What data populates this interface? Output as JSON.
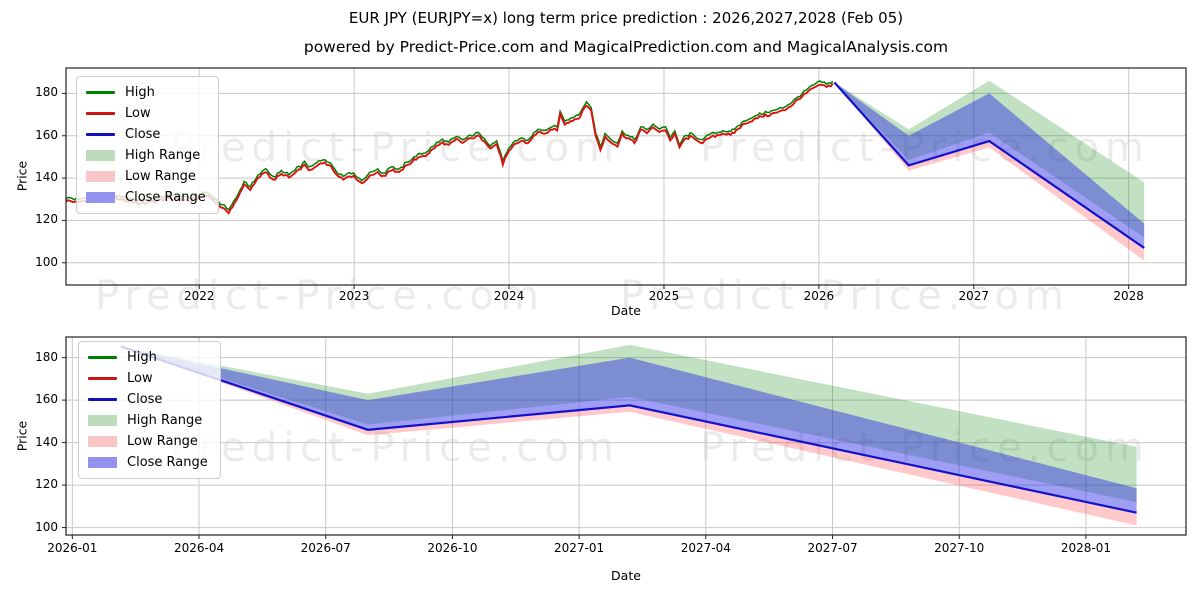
{
  "title": "EUR JPY (EURJPY=x) long term price prediction : 2026,2027,2028 (Feb 05)",
  "subtitle": "powered by Predict-Price.com and MagicalPrediction.com and MagicalAnalysis.com",
  "watermark": {
    "text": "Predict-Price.com",
    "color": "rgba(0,0,0,0.08)"
  },
  "legend": {
    "items": [
      {
        "label": "High",
        "type": "line",
        "color": "#008000"
      },
      {
        "label": "Low",
        "type": "line",
        "color": "#cc1414"
      },
      {
        "label": "Close",
        "type": "line",
        "color": "#1111bb"
      },
      {
        "label": "High Range",
        "type": "patch",
        "color": "#bcdcbc"
      },
      {
        "label": "Low Range",
        "type": "patch",
        "color": "#f9c6c8"
      },
      {
        "label": "Close Range",
        "type": "patch",
        "color": "#9292ee"
      }
    ]
  },
  "colors": {
    "high_line": "#008000",
    "low_line": "#dd1212",
    "close_line": "#1111cc",
    "high_band": "rgba(0,128,0,0.24)",
    "low_band": "rgba(255,60,70,0.28)",
    "close_band": "rgba(40,40,230,0.45)",
    "grid": "#c8c8c8",
    "spine": "#222222"
  },
  "chart_data": [
    {
      "type": "line",
      "name": "full-history-and-prediction",
      "xlabel": "Date",
      "ylabel": "Price",
      "grid": true,
      "xlim": [
        2021.14,
        2028.37
      ],
      "ylim": [
        89.5,
        192
      ],
      "yticks": [
        100,
        120,
        140,
        160,
        180
      ],
      "xticks": [
        {
          "v": 2022,
          "label": "2022"
        },
        {
          "v": 2023,
          "label": "2023"
        },
        {
          "v": 2024,
          "label": "2024"
        },
        {
          "v": 2025,
          "label": "2025"
        },
        {
          "v": 2026,
          "label": "2026"
        },
        {
          "v": 2027,
          "label": "2027"
        },
        {
          "v": 2028,
          "label": "2028"
        }
      ],
      "history": {
        "name": "EURJPY daily High/Low (anchor closes, decimal years)",
        "points": [
          [
            2021.14,
            130.0
          ],
          [
            2021.22,
            129.2
          ],
          [
            2021.3,
            130.6
          ],
          [
            2021.38,
            129.6
          ],
          [
            2021.46,
            131.0
          ],
          [
            2021.54,
            130.0
          ],
          [
            2021.62,
            128.8
          ],
          [
            2021.7,
            129.6
          ],
          [
            2021.78,
            130.8
          ],
          [
            2021.86,
            131.2
          ],
          [
            2021.94,
            129.8
          ],
          [
            2022.0,
            131.6
          ],
          [
            2022.05,
            132.6
          ],
          [
            2022.1,
            129.8
          ],
          [
            2022.15,
            126.5
          ],
          [
            2022.19,
            124.6
          ],
          [
            2022.24,
            130.0
          ],
          [
            2022.29,
            137.8
          ],
          [
            2022.33,
            135.2
          ],
          [
            2022.38,
            140.5
          ],
          [
            2022.43,
            144.0
          ],
          [
            2022.48,
            139.4
          ],
          [
            2022.53,
            142.6
          ],
          [
            2022.58,
            141.0
          ],
          [
            2022.63,
            143.8
          ],
          [
            2022.68,
            146.6
          ],
          [
            2022.72,
            144.2
          ],
          [
            2022.77,
            147.0
          ],
          [
            2022.81,
            148.3
          ],
          [
            2022.85,
            146.0
          ],
          [
            2022.89,
            142.4
          ],
          [
            2022.93,
            140.2
          ],
          [
            2022.97,
            142.2
          ],
          [
            2023.01,
            140.8
          ],
          [
            2023.05,
            138.2
          ],
          [
            2023.09,
            141.0
          ],
          [
            2023.14,
            143.4
          ],
          [
            2023.19,
            141.6
          ],
          [
            2023.24,
            144.8
          ],
          [
            2023.29,
            143.2
          ],
          [
            2023.34,
            146.8
          ],
          [
            2023.4,
            149.8
          ],
          [
            2023.46,
            151.5
          ],
          [
            2023.52,
            155.0
          ],
          [
            2023.57,
            157.6
          ],
          [
            2023.61,
            156.2
          ],
          [
            2023.66,
            158.8
          ],
          [
            2023.7,
            157.4
          ],
          [
            2023.75,
            159.4
          ],
          [
            2023.8,
            160.6
          ],
          [
            2023.84,
            158.2
          ],
          [
            2023.88,
            154.8
          ],
          [
            2023.92,
            156.8
          ],
          [
            2023.96,
            147.6
          ],
          [
            2024.0,
            153.2
          ],
          [
            2024.04,
            156.8
          ],
          [
            2024.08,
            158.4
          ],
          [
            2024.12,
            157.2
          ],
          [
            2024.16,
            160.6
          ],
          [
            2024.2,
            162.6
          ],
          [
            2024.24,
            161.2
          ],
          [
            2024.28,
            164.0
          ],
          [
            2024.31,
            163.2
          ],
          [
            2024.33,
            170.8
          ],
          [
            2024.36,
            166.4
          ],
          [
            2024.41,
            168.0
          ],
          [
            2024.46,
            170.0
          ],
          [
            2024.5,
            175.4
          ],
          [
            2024.53,
            172.5
          ],
          [
            2024.56,
            160.8
          ],
          [
            2024.59,
            153.9
          ],
          [
            2024.62,
            160.2
          ],
          [
            2024.66,
            157.6
          ],
          [
            2024.7,
            155.8
          ],
          [
            2024.73,
            161.2
          ],
          [
            2024.77,
            159.6
          ],
          [
            2024.81,
            157.4
          ],
          [
            2024.85,
            163.2
          ],
          [
            2024.89,
            162.2
          ],
          [
            2024.93,
            164.4
          ],
          [
            2024.97,
            162.8
          ],
          [
            2025.01,
            163.6
          ],
          [
            2025.04,
            158.6
          ],
          [
            2025.07,
            161.2
          ],
          [
            2025.1,
            155.2
          ],
          [
            2025.13,
            158.6
          ],
          [
            2025.17,
            160.4
          ],
          [
            2025.21,
            158.8
          ],
          [
            2025.25,
            157.2
          ],
          [
            2025.29,
            159.8
          ],
          [
            2025.33,
            160.6
          ],
          [
            2025.38,
            161.8
          ],
          [
            2025.43,
            161.0
          ],
          [
            2025.48,
            164.0
          ],
          [
            2025.53,
            166.8
          ],
          [
            2025.58,
            168.2
          ],
          [
            2025.63,
            169.8
          ],
          [
            2025.68,
            170.6
          ],
          [
            2025.73,
            171.8
          ],
          [
            2025.78,
            173.0
          ],
          [
            2025.83,
            175.5
          ],
          [
            2025.88,
            178.5
          ],
          [
            2025.93,
            181.5
          ],
          [
            2025.98,
            184.0
          ],
          [
            2026.02,
            184.8
          ],
          [
            2026.05,
            183.6
          ],
          [
            2026.09,
            185.2
          ]
        ]
      },
      "prediction": {
        "x": [
          2026.1,
          2026.58,
          2027.1,
          2028.1
        ],
        "x_labels": [
          "2026-02-05",
          "2026-08",
          "2027-02",
          "2028-02-05"
        ],
        "close": [
          185.2,
          146.0,
          157.5,
          107.0
        ],
        "close_upper": [
          185.2,
          160.0,
          180.0,
          118.5
        ],
        "high_upper": [
          185.2,
          163.0,
          186.0,
          138.0
        ],
        "high_lower": [
          185.2,
          148.5,
          161.5,
          112.0
        ],
        "low_upper": [
          185.2,
          145.5,
          157.0,
          106.5
        ],
        "low_lower": [
          185.2,
          143.5,
          154.5,
          101.0
        ]
      }
    },
    {
      "type": "line",
      "name": "prediction-zoom-2026-2028",
      "xlabel": "Date",
      "ylabel": "Price",
      "grid": true,
      "xlim": [
        -0.15,
        26.37
      ],
      "ylim": [
        96.5,
        189.7
      ],
      "yticks": [
        100,
        120,
        140,
        160,
        180
      ],
      "xticks": [
        {
          "v": 0,
          "label": "2026-01"
        },
        {
          "v": 3,
          "label": "2026-04"
        },
        {
          "v": 6,
          "label": "2026-07"
        },
        {
          "v": 9,
          "label": "2026-10"
        },
        {
          "v": 12,
          "label": "2027-01"
        },
        {
          "v": 15,
          "label": "2027-04"
        },
        {
          "v": 18,
          "label": "2027-07"
        },
        {
          "v": 21,
          "label": "2027-10"
        },
        {
          "v": 24,
          "label": "2028-01"
        }
      ],
      "prediction": {
        "x": [
          1.15,
          7.0,
          13.2,
          25.2
        ],
        "x_labels": [
          "2026-02-05",
          "2026-08",
          "2027-02",
          "2028-02-05"
        ],
        "close": [
          185.2,
          146.0,
          157.5,
          107.0
        ],
        "close_upper": [
          185.2,
          160.0,
          180.0,
          118.5
        ],
        "high_upper": [
          185.2,
          163.0,
          186.0,
          138.0
        ],
        "high_lower": [
          185.2,
          148.5,
          161.5,
          112.0
        ],
        "low_upper": [
          185.2,
          145.5,
          157.0,
          106.5
        ],
        "low_lower": [
          185.2,
          143.5,
          154.5,
          101.0
        ]
      }
    }
  ]
}
